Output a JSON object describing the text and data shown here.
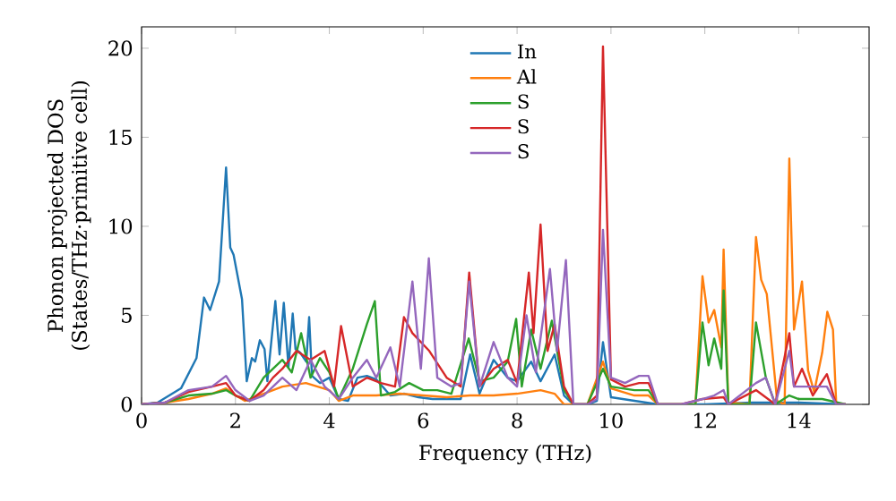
{
  "chart_data": {
    "type": "line",
    "xlabel": "Frequency (THz)",
    "ylabel": "Phonon projected DOS\n(States/THz·primitive cell)",
    "xlim": [
      0,
      15.5
    ],
    "xticks": [
      0,
      2,
      4,
      6,
      8,
      10,
      12,
      14
    ],
    "ylim": [
      0,
      21.2
    ],
    "yticks": [
      0,
      5,
      10,
      15,
      20
    ],
    "legend": "top",
    "grid": false,
    "marker": "none",
    "line_style": "solid",
    "series": [
      {
        "name": "In",
        "color": "#1f77b4",
        "x": [
          0,
          0.34,
          0.84,
          1.17,
          1.33,
          1.46,
          1.65,
          1.8,
          1.89,
          1.96,
          2.14,
          2.24,
          2.35,
          2.42,
          2.52,
          2.62,
          2.68,
          2.85,
          2.94,
          3.03,
          3.13,
          3.22,
          3.28,
          3.38,
          3.51,
          3.57,
          3.63,
          3.8,
          4.0,
          4.2,
          4.4,
          4.6,
          4.8,
          5.0,
          5.3,
          5.6,
          5.9,
          6.2,
          6.5,
          6.8,
          7.0,
          7.2,
          7.5,
          7.8,
          8.0,
          8.3,
          8.5,
          8.8,
          9.0,
          9.2,
          9.5,
          9.7,
          9.83,
          10.0,
          10.5,
          11.0,
          12.0,
          13.0,
          14.0,
          15.0
        ],
        "values": [
          0,
          0.1,
          0.9,
          2.6,
          6.0,
          5.3,
          6.9,
          13.3,
          8.8,
          8.4,
          5.9,
          1.3,
          2.6,
          2.4,
          3.6,
          3.1,
          1.3,
          5.8,
          2.8,
          5.7,
          2.1,
          5.1,
          3.1,
          2.9,
          2.4,
          4.9,
          1.6,
          1.2,
          1.5,
          0.3,
          0.2,
          1.5,
          1.6,
          1.4,
          0.5,
          0.6,
          0.4,
          0.3,
          0.3,
          0.3,
          2.8,
          0.6,
          2.5,
          1.5,
          1.3,
          2.4,
          1.3,
          2.8,
          0.5,
          0,
          0,
          0.2,
          3.5,
          0.4,
          0.2,
          0,
          0,
          0.1,
          0.1,
          0
        ]
      },
      {
        "name": "Al",
        "color": "#ff7f0e",
        "x": [
          0,
          0.5,
          1.0,
          1.5,
          1.8,
          2.0,
          2.2,
          2.5,
          3.0,
          3.5,
          4.0,
          4.2,
          4.5,
          5.0,
          5.5,
          6.0,
          6.5,
          7.0,
          7.5,
          8.0,
          8.5,
          8.8,
          9.0,
          9.5,
          9.83,
          10.0,
          10.5,
          10.8,
          11.0,
          11.5,
          11.8,
          11.95,
          12.08,
          12.2,
          12.35,
          12.4,
          12.5,
          12.95,
          13.09,
          13.2,
          13.32,
          13.54,
          13.7,
          13.8,
          13.9,
          14.07,
          14.2,
          14.33,
          14.5,
          14.61,
          14.73,
          14.8,
          15.0
        ],
        "values": [
          0,
          0.1,
          0.3,
          0.6,
          0.9,
          0.5,
          0.2,
          0.5,
          1.0,
          1.2,
          0.8,
          0.2,
          0.5,
          0.5,
          0.6,
          0.5,
          0.4,
          0.5,
          0.5,
          0.6,
          0.8,
          0.6,
          0,
          0,
          2.4,
          0.9,
          0.5,
          0.5,
          0,
          0,
          0,
          7.2,
          4.6,
          5.3,
          3.2,
          8.7,
          0.1,
          0,
          9.4,
          7.0,
          6.2,
          0.2,
          0,
          13.8,
          4.2,
          6.9,
          1.9,
          0.7,
          2.9,
          5.2,
          4.2,
          0,
          0
        ]
      },
      {
        "name": "S",
        "color": "#2ca02c",
        "x": [
          0,
          0.5,
          1.0,
          1.5,
          1.8,
          2.0,
          2.3,
          2.6,
          2.8,
          3.0,
          3.2,
          3.4,
          3.6,
          3.8,
          4.0,
          4.2,
          4.5,
          4.8,
          4.97,
          5.1,
          5.4,
          5.7,
          6.0,
          6.3,
          6.6,
          6.97,
          7.2,
          7.5,
          7.8,
          7.98,
          8.1,
          8.3,
          8.5,
          8.74,
          9.0,
          9.2,
          9.5,
          9.83,
          10.0,
          10.5,
          10.8,
          11.0,
          11.5,
          11.8,
          11.95,
          12.08,
          12.2,
          12.35,
          12.4,
          12.5,
          12.95,
          13.09,
          13.3,
          13.5,
          13.8,
          14.0,
          14.5,
          15.0
        ],
        "values": [
          0,
          0.1,
          0.5,
          0.6,
          0.8,
          0.5,
          0.2,
          1.5,
          2.0,
          2.5,
          1.8,
          4.0,
          1.5,
          2.6,
          1.8,
          0.3,
          2.0,
          4.5,
          5.8,
          0.5,
          0.7,
          1.2,
          0.8,
          0.8,
          0.6,
          3.7,
          1.3,
          1.5,
          2.4,
          4.8,
          1.0,
          4.2,
          2.0,
          4.7,
          0.8,
          0,
          0,
          2.0,
          1.0,
          0.8,
          0.8,
          0,
          0,
          0,
          4.6,
          2.2,
          3.7,
          2.0,
          6.4,
          0,
          0,
          4.6,
          1.5,
          0,
          0.5,
          0.3,
          0.3,
          0
        ]
      },
      {
        "name": "S",
        "color": "#d62728",
        "x": [
          0,
          0.5,
          1.0,
          1.5,
          1.8,
          2.0,
          2.3,
          2.6,
          2.8,
          3.0,
          3.3,
          3.6,
          3.9,
          4.1,
          4.25,
          4.5,
          4.8,
          5.1,
          5.4,
          5.59,
          5.77,
          6.13,
          6.5,
          6.8,
          6.98,
          7.2,
          7.5,
          7.8,
          8.0,
          8.25,
          8.35,
          8.5,
          8.65,
          8.8,
          9.0,
          9.2,
          9.5,
          9.7,
          9.83,
          10.0,
          10.3,
          10.6,
          10.8,
          11.0,
          11.5,
          11.95,
          12.4,
          12.5,
          13.09,
          13.5,
          13.8,
          13.9,
          14.07,
          14.3,
          14.6,
          14.8,
          15.0
        ],
        "values": [
          0,
          0.1,
          0.7,
          1.0,
          1.2,
          0.5,
          0.2,
          0.8,
          1.5,
          2.0,
          3.0,
          2.5,
          3.0,
          1.0,
          4.4,
          1.0,
          1.5,
          1.2,
          1.0,
          4.9,
          4.0,
          3.0,
          1.5,
          1.0,
          7.4,
          1.0,
          2.0,
          2.5,
          1.2,
          7.4,
          4.0,
          10.1,
          3.0,
          4.5,
          1.0,
          0,
          0,
          0.5,
          20.1,
          1.4,
          1.0,
          1.2,
          1.2,
          0,
          0,
          0.3,
          0.4,
          0,
          0.8,
          0,
          4.0,
          1.0,
          2.0,
          0.5,
          1.7,
          0,
          0
        ]
      },
      {
        "name": "S",
        "color": "#9467bd",
        "x": [
          0,
          0.5,
          1.0,
          1.5,
          1.8,
          2.0,
          2.3,
          2.6,
          2.8,
          3.0,
          3.3,
          3.6,
          3.9,
          4.2,
          4.5,
          4.8,
          5.0,
          5.3,
          5.5,
          5.77,
          5.95,
          6.12,
          6.3,
          6.6,
          6.8,
          6.98,
          7.2,
          7.5,
          7.8,
          8.0,
          8.2,
          8.4,
          8.7,
          8.85,
          9.04,
          9.2,
          9.5,
          9.7,
          9.83,
          10.0,
          10.3,
          10.6,
          10.8,
          11.0,
          11.5,
          11.95,
          12.2,
          12.4,
          12.5,
          13.09,
          13.3,
          13.5,
          13.8,
          13.9,
          14.1,
          14.6,
          14.8,
          15.0
        ],
        "values": [
          0,
          0.1,
          0.8,
          1.0,
          1.6,
          0.8,
          0.2,
          0.5,
          1.0,
          1.5,
          0.8,
          2.5,
          1.0,
          0.3,
          1.5,
          2.5,
          1.5,
          3.2,
          1.0,
          6.9,
          2.0,
          8.2,
          1.5,
          1.0,
          1.2,
          6.9,
          1.0,
          3.5,
          1.5,
          1.0,
          5.0,
          1.8,
          7.6,
          3.0,
          8.1,
          0,
          0,
          0.3,
          9.8,
          1.5,
          1.2,
          1.6,
          1.6,
          0,
          0,
          0.3,
          0.5,
          0.8,
          0,
          1.2,
          1.5,
          0,
          3.0,
          1.0,
          1.0,
          1.0,
          0,
          0
        ]
      }
    ]
  }
}
